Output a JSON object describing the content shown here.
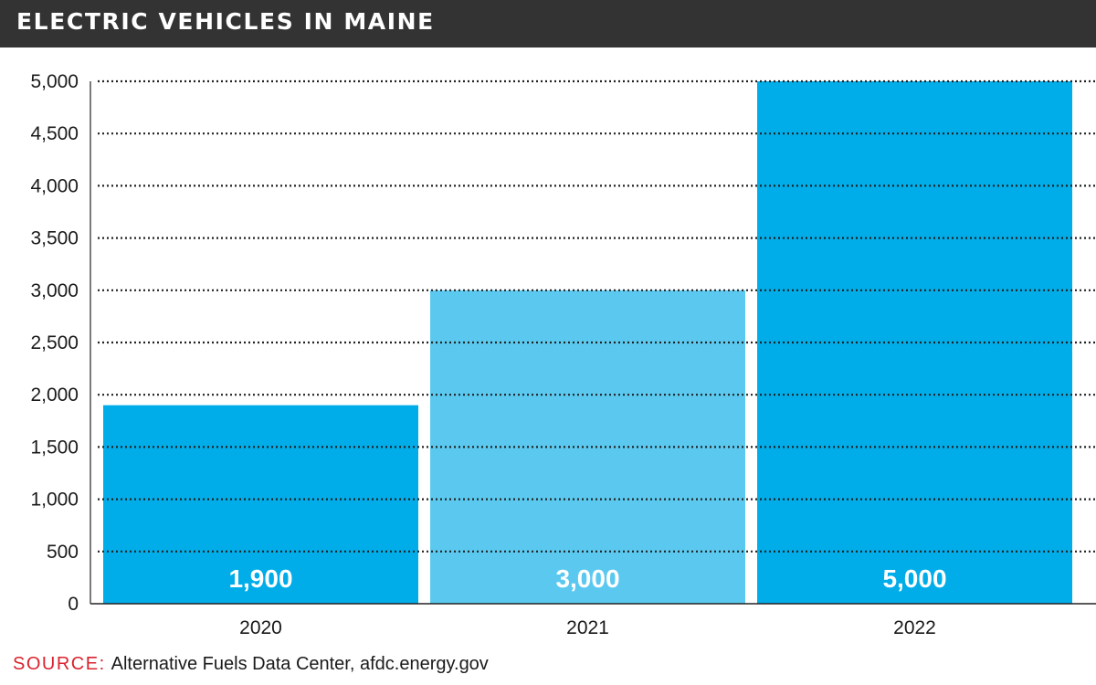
{
  "header": {
    "title": "ELECTRIC VEHICLES IN MAINE"
  },
  "source": {
    "label": "SOURCE:",
    "text": "Alternative Fuels Data Center, afdc.energy.gov"
  },
  "colors": {
    "header_bg": "#333333",
    "bar_dark": "#00ade9",
    "bar_light": "#5bc9ef",
    "source_label": "#d9232e",
    "grid": "#222222"
  },
  "chart_data": {
    "type": "bar",
    "title": "ELECTRIC VEHICLES IN MAINE",
    "categories": [
      "2020",
      "2021",
      "2022"
    ],
    "values": [
      1900,
      3000,
      5000
    ],
    "value_labels": [
      "1,900",
      "3,000",
      "5,000"
    ],
    "bar_colors": [
      "#00ade9",
      "#5bc9ef",
      "#00ade9"
    ],
    "ylim": [
      0,
      5000
    ],
    "yticks": [
      0,
      500,
      1000,
      1500,
      2000,
      2500,
      3000,
      3500,
      4000,
      4500,
      5000
    ],
    "ytick_labels": [
      "0",
      "500",
      "1,000",
      "1,500",
      "2,000",
      "2,500",
      "3,000",
      "3,500",
      "4,000",
      "4,500",
      "5,000"
    ],
    "xlabel": "",
    "ylabel": "",
    "grid": "dotted horizontal",
    "legend": "none"
  }
}
